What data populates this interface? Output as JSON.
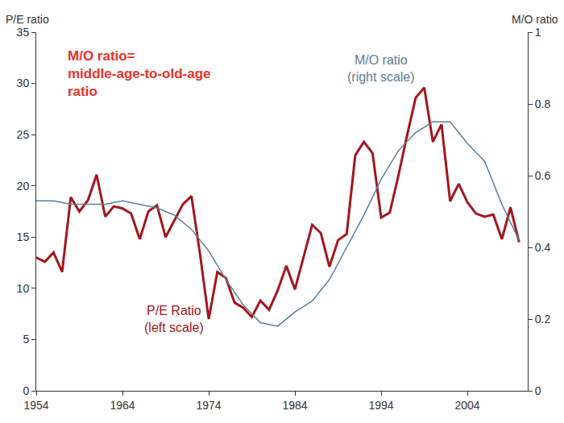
{
  "chart_data": {
    "type": "line",
    "y_label": "P/E ratio",
    "y2_label": "M/O ratio",
    "note": "M/O ratio=\nmiddle-age-to-old-age\nratio",
    "xlim": [
      1954,
      2011
    ],
    "xticks": [
      1954,
      1964,
      1974,
      1984,
      1994,
      2004
    ],
    "ylim": [
      0,
      35
    ],
    "yticks": [
      0,
      5,
      10,
      15,
      20,
      25,
      30,
      35
    ],
    "y2lim": [
      0,
      1
    ],
    "y2ticks": [
      0,
      0.2,
      0.4,
      0.6,
      0.8,
      1
    ],
    "grid": false,
    "series": [
      {
        "name": "P/E Ratio\n(left scale)",
        "color": "#a3161d",
        "axis": "y",
        "x": [
          1954,
          1955,
          1956,
          1957,
          1958,
          1959,
          1960,
          1961,
          1962,
          1963,
          1964,
          1965,
          1966,
          1967,
          1968,
          1969,
          1970,
          1971,
          1972,
          1973,
          1974,
          1975,
          1976,
          1977,
          1978,
          1979,
          1980,
          1981,
          1982,
          1983,
          1984,
          1985,
          1986,
          1987,
          1988,
          1989,
          1990,
          1991,
          1992,
          1993,
          1994,
          1995,
          1996,
          1997,
          1998,
          1999,
          2000,
          2001,
          2002,
          2003,
          2004,
          2005,
          2006,
          2007,
          2008,
          2009,
          2010
        ],
        "values": [
          13.0,
          12.6,
          13.5,
          11.6,
          18.9,
          17.5,
          18.6,
          21.1,
          17.0,
          18.0,
          17.8,
          17.3,
          14.8,
          17.5,
          18.1,
          15.0,
          16.6,
          18.2,
          19.0,
          13.3,
          7.0,
          11.6,
          11.0,
          8.6,
          8.1,
          7.2,
          8.8,
          7.9,
          9.8,
          12.2,
          9.9,
          13.1,
          16.2,
          15.4,
          12.1,
          14.7,
          15.3,
          23.0,
          24.3,
          23.2,
          16.9,
          17.4,
          21.0,
          24.9,
          28.6,
          29.6,
          24.3,
          26.0,
          18.5,
          20.2,
          18.4,
          17.3,
          17.0,
          17.2,
          14.8,
          17.9,
          14.5
        ]
      },
      {
        "name": "M/O ratio\n(right scale)",
        "color": "#5d8096",
        "axis": "y2",
        "x": [
          1954,
          1956,
          1958,
          1960,
          1962,
          1964,
          1966,
          1968,
          1970,
          1972,
          1974,
          1976,
          1978,
          1980,
          1982,
          1984,
          1986,
          1988,
          1990,
          1992,
          1994,
          1996,
          1998,
          2000,
          2002,
          2004,
          2006,
          2008,
          2010
        ],
        "values": [
          0.53,
          0.53,
          0.52,
          0.52,
          0.52,
          0.53,
          0.52,
          0.51,
          0.49,
          0.45,
          0.39,
          0.31,
          0.24,
          0.19,
          0.18,
          0.22,
          0.25,
          0.31,
          0.4,
          0.49,
          0.59,
          0.67,
          0.72,
          0.75,
          0.75,
          0.69,
          0.64,
          0.52,
          0.42
        ]
      }
    ]
  }
}
